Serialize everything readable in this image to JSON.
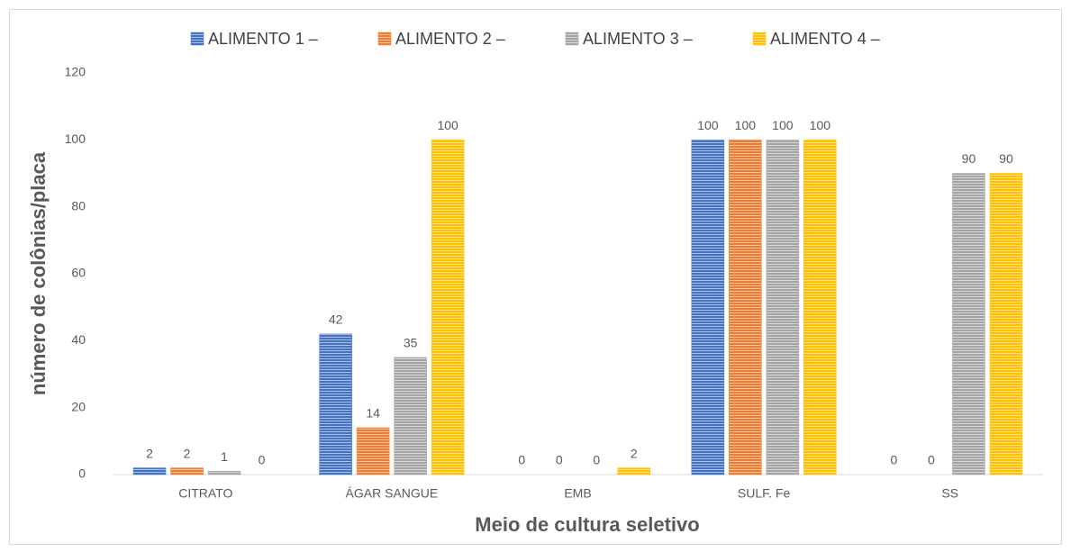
{
  "chart_data": {
    "type": "bar",
    "x_label": "Meio de cultura seletivo",
    "y_label": "número de colônias/placa",
    "categories": [
      "CITRATO",
      "ÁGAR SANGUE",
      "EMB",
      "SULF. Fe",
      "SS"
    ],
    "series": [
      {
        "name": "ALIMENTO 1 –",
        "color": "#4472c4",
        "values": [
          2,
          42,
          0,
          100,
          0
        ]
      },
      {
        "name": "ALIMENTO 2 –",
        "color": "#ed7d31",
        "values": [
          2,
          14,
          0,
          100,
          0
        ]
      },
      {
        "name": "ALIMENTO 3 –",
        "color": "#a5a5a5",
        "values": [
          1,
          35,
          0,
          100,
          90
        ]
      },
      {
        "name": "ALIMENTO 4 –",
        "color": "#ffc000",
        "values": [
          0,
          100,
          2,
          100,
          90
        ]
      }
    ],
    "ylim": [
      0,
      120
    ],
    "yticks": [
      0,
      20,
      40,
      60,
      80,
      100,
      120
    ],
    "grid": false,
    "legend": "top"
  }
}
